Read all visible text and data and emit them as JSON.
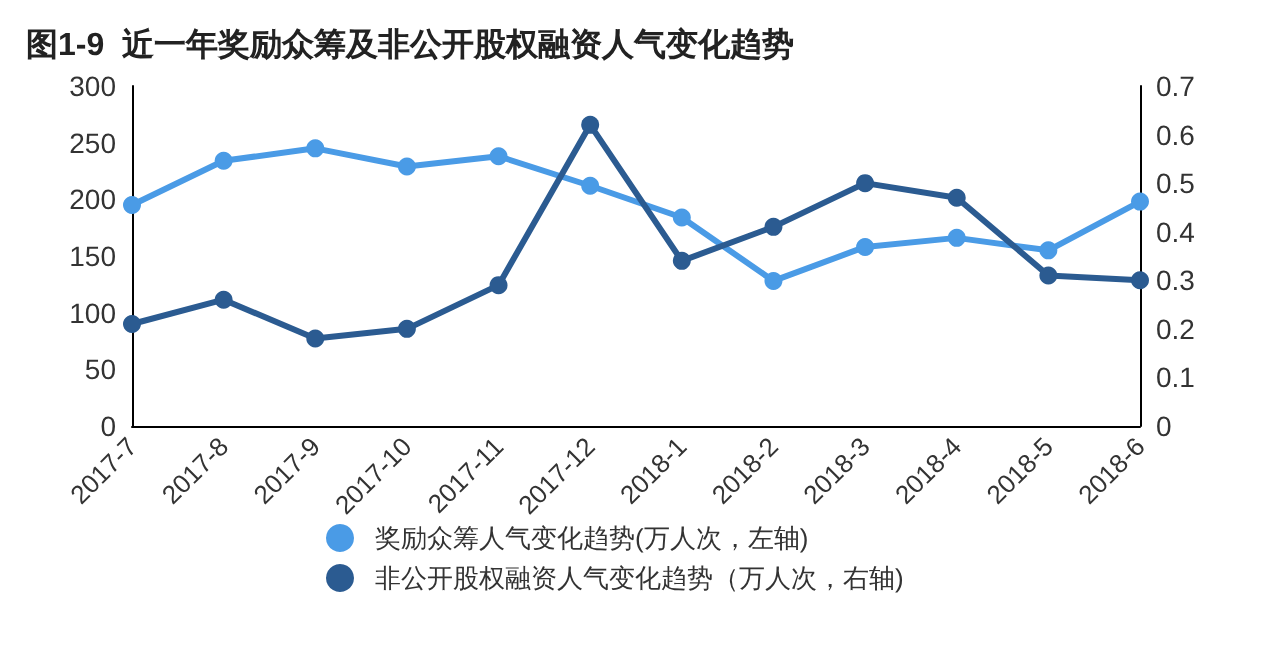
{
  "chart_data": {
    "type": "line",
    "title": "图1-9  近一年奖励众筹及非公开股权融资人气变化趋势",
    "categories": [
      "2017-7",
      "2017-8",
      "2017-9",
      "2017-10",
      "2017-11",
      "2017-12",
      "2018-1",
      "2018-2",
      "2018-3",
      "2018-4",
      "2018-5",
      "2018-6"
    ],
    "series": [
      {
        "name": "奖励众筹人气变化趋势(万人次，左轴)",
        "color": "#4a9be6",
        "values": [
          195,
          234,
          245,
          229,
          238,
          212,
          184,
          128,
          158,
          166,
          155,
          198
        ]
      },
      {
        "name": "非公开股权融资人气变化趋势（万人次，右轴)",
        "color": "#2b5b91",
        "axis": "y2",
        "values": [
          0.21,
          0.26,
          0.18,
          0.2,
          0.29,
          0.62,
          0.34,
          0.41,
          0.5,
          0.47,
          0.31,
          0.3
        ]
      }
    ],
    "ylim": [
      0,
      300
    ],
    "yticks": [
      0,
      50,
      100,
      150,
      200,
      250,
      300
    ],
    "y2lim": [
      0,
      0.7
    ],
    "y2ticks": [
      0,
      0.1,
      0.2,
      0.3,
      0.4,
      0.5,
      0.6,
      0.7
    ],
    "grid": false,
    "legend": "bottom",
    "marker": "circle",
    "line_style": "solid"
  }
}
